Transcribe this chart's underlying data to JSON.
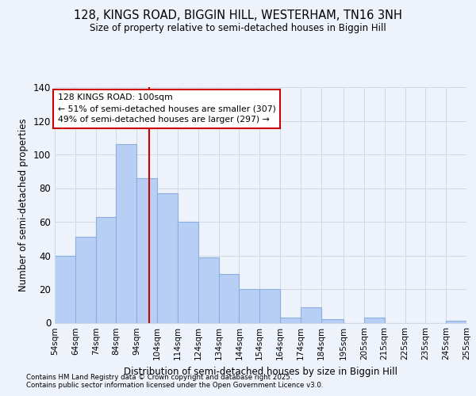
{
  "title": "128, KINGS ROAD, BIGGIN HILL, WESTERHAM, TN16 3NH",
  "subtitle": "Size of property relative to semi-detached houses in Biggin Hill",
  "xlabel": "Distribution of semi-detached houses by size in Biggin Hill",
  "ylabel": "Number of semi-detached properties",
  "footnote1": "Contains HM Land Registry data © Crown copyright and database right 2025.",
  "footnote2": "Contains public sector information licensed under the Open Government Licence v3.0.",
  "annotation_title": "128 KINGS ROAD: 100sqm",
  "annotation_line1": "← 51% of semi-detached houses are smaller (307)",
  "annotation_line2": "49% of semi-detached houses are larger (297) →",
  "subject_value": 100,
  "bin_edges": [
    54,
    64,
    74,
    84,
    94,
    104,
    114,
    124,
    134,
    144,
    154,
    164,
    174,
    184,
    195,
    205,
    215,
    225,
    235,
    245,
    255
  ],
  "bin_labels": [
    "54sqm",
    "64sqm",
    "74sqm",
    "84sqm",
    "94sqm",
    "104sqm",
    "114sqm",
    "124sqm",
    "134sqm",
    "144sqm",
    "154sqm",
    "164sqm",
    "174sqm",
    "184sqm",
    "195sqm",
    "205sqm",
    "215sqm",
    "225sqm",
    "235sqm",
    "245sqm",
    "255sqm"
  ],
  "counts": [
    40,
    51,
    63,
    106,
    86,
    77,
    60,
    39,
    29,
    20,
    20,
    3,
    9,
    2,
    0,
    3,
    0,
    0,
    0,
    1
  ],
  "bar_color": "#b8cff5",
  "bar_edge_color": "#8aaee0",
  "subject_line_color": "#cc0000",
  "annotation_box_edge": "#cc0000",
  "grid_color": "#d0d8e8",
  "bg_color": "#eef2fa",
  "ylim": [
    0,
    140
  ],
  "yticks": [
    0,
    20,
    40,
    60,
    80,
    100,
    120,
    140
  ]
}
